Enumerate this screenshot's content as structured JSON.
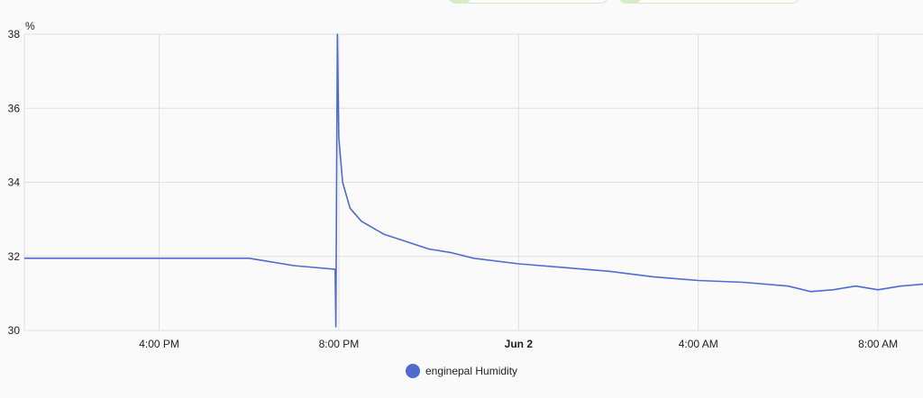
{
  "chart_data": {
    "type": "line",
    "title": "",
    "unit": "%",
    "ylim": [
      30,
      38
    ],
    "y_ticks": [
      30,
      32,
      34,
      36,
      38
    ],
    "x_start": "2024-06-01T13:00",
    "x_end": "2024-06-02T09:00",
    "x_ticks": [
      {
        "t": "2024-06-01T16:00",
        "label": "4:00 PM",
        "bold": false
      },
      {
        "t": "2024-06-01T20:00",
        "label": "8:00 PM",
        "bold": false
      },
      {
        "t": "2024-06-02T00:00",
        "label": "Jun 2",
        "bold": true
      },
      {
        "t": "2024-06-02T04:00",
        "label": "4:00 AM",
        "bold": false
      },
      {
        "t": "2024-06-02T08:00",
        "label": "8:00 AM",
        "bold": false
      }
    ],
    "grid": true,
    "legend_position": "bottom",
    "series": [
      {
        "name": "enginepal Humidity",
        "color": "#4e6bd1",
        "points": [
          [
            "2024-06-01T13:00",
            31.95
          ],
          [
            "2024-06-01T14:00",
            31.95
          ],
          [
            "2024-06-01T15:00",
            31.95
          ],
          [
            "2024-06-01T16:00",
            31.95
          ],
          [
            "2024-06-01T17:00",
            31.95
          ],
          [
            "2024-06-01T18:00",
            31.95
          ],
          [
            "2024-06-01T19:00",
            31.75
          ],
          [
            "2024-06-01T19:55",
            31.65
          ],
          [
            "2024-06-01T19:56",
            30.1
          ],
          [
            "2024-06-01T19:58",
            38.0
          ],
          [
            "2024-06-01T20:00",
            35.2
          ],
          [
            "2024-06-01T20:05",
            34.0
          ],
          [
            "2024-06-01T20:15",
            33.3
          ],
          [
            "2024-06-01T20:30",
            32.95
          ],
          [
            "2024-06-01T21:00",
            32.6
          ],
          [
            "2024-06-01T21:30",
            32.4
          ],
          [
            "2024-06-01T22:00",
            32.2
          ],
          [
            "2024-06-01T22:30",
            32.1
          ],
          [
            "2024-06-01T23:00",
            31.95
          ],
          [
            "2024-06-02T00:00",
            31.8
          ],
          [
            "2024-06-02T01:00",
            31.7
          ],
          [
            "2024-06-02T02:00",
            31.6
          ],
          [
            "2024-06-02T03:00",
            31.45
          ],
          [
            "2024-06-02T04:00",
            31.35
          ],
          [
            "2024-06-02T05:00",
            31.3
          ],
          [
            "2024-06-02T06:00",
            31.2
          ],
          [
            "2024-06-02T06:30",
            31.05
          ],
          [
            "2024-06-02T07:00",
            31.1
          ],
          [
            "2024-06-02T07:30",
            31.2
          ],
          [
            "2024-06-02T08:00",
            31.1
          ],
          [
            "2024-06-02T08:30",
            31.2
          ],
          [
            "2024-06-02T09:00",
            31.25
          ]
        ]
      }
    ]
  }
}
